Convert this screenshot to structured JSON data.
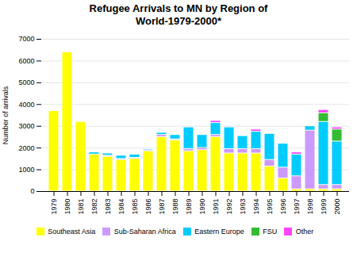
{
  "chart_data": {
    "type": "bar",
    "stacked": true,
    "title": "Refugee Arrivals to MN by Region of\nWorld-1979-2000*",
    "ylabel": "Number of arrivals",
    "categories": [
      "1979",
      "1980",
      "1981",
      "1982",
      "1983",
      "1984",
      "1985",
      "1986",
      "1987",
      "1988",
      "1989",
      "1990",
      "1991",
      "1992",
      "1993",
      "1994",
      "1995",
      "1996",
      "1997",
      "1998",
      "1999",
      "2000"
    ],
    "series": [
      {
        "name": "Southeast Asia",
        "color": "#FFFF00",
        "values": [
          3700,
          6400,
          3200,
          1700,
          1600,
          1450,
          1500,
          1850,
          2500,
          2350,
          1850,
          1900,
          2500,
          1750,
          1750,
          1750,
          1150,
          600,
          100,
          100,
          100,
          100
        ]
      },
      {
        "name": "Sub-Saharan Africa",
        "color": "#CC99FF",
        "values": [
          0,
          0,
          0,
          0,
          50,
          50,
          50,
          50,
          100,
          50,
          100,
          100,
          100,
          200,
          200,
          200,
          300,
          500,
          600,
          2700,
          200,
          200
        ]
      },
      {
        "name": "Eastern Europe",
        "color": "#00CCFF",
        "values": [
          0,
          0,
          0,
          100,
          100,
          150,
          150,
          50,
          100,
          200,
          1000,
          600,
          550,
          1000,
          600,
          800,
          1200,
          1100,
          1000,
          200,
          2900,
          2000
        ]
      },
      {
        "name": "FSU",
        "color": "#33BB33",
        "values": [
          0,
          0,
          0,
          0,
          0,
          0,
          0,
          0,
          0,
          0,
          0,
          0,
          0,
          0,
          0,
          0,
          0,
          0,
          0,
          0,
          400,
          550
        ]
      },
      {
        "name": "Other",
        "color": "#FF44FF",
        "values": [
          0,
          0,
          0,
          0,
          0,
          0,
          0,
          0,
          0,
          0,
          0,
          0,
          100,
          0,
          0,
          100,
          0,
          0,
          100,
          0,
          150,
          100
        ]
      }
    ],
    "ylim": [
      0,
      7000
    ],
    "yticks": [
      0,
      1000,
      2000,
      3000,
      4000,
      5000,
      6000,
      7000
    ],
    "grid": true,
    "legend": "bottom"
  }
}
